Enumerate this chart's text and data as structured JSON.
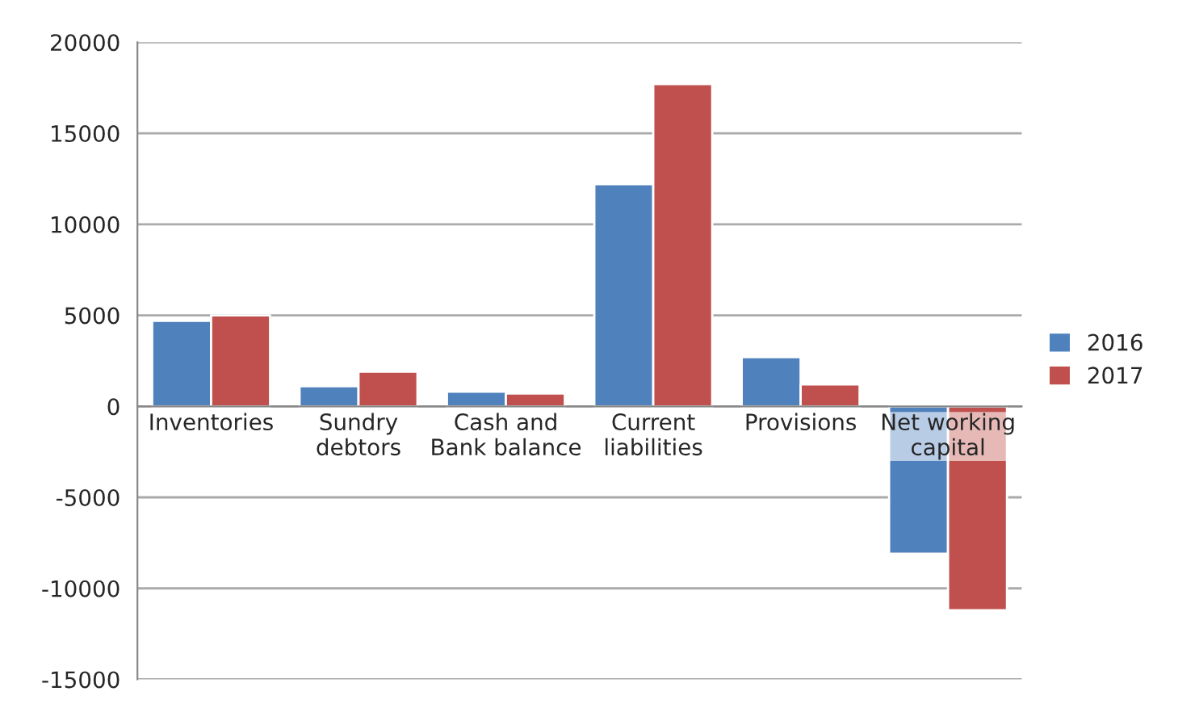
{
  "chart_data": {
    "type": "bar",
    "categories": [
      "Inventories",
      "Sundry\ndebtors",
      "Cash and\nBank balance",
      "Current\nliabilities",
      "Provisions",
      "Net working\ncapital"
    ],
    "series": [
      {
        "name": "2016",
        "color": "#4f81bd",
        "values": [
          4700,
          1100,
          800,
          12200,
          2700,
          -8100
        ]
      },
      {
        "name": "2017",
        "color": "#c0504d",
        "values": [
          5000,
          1900,
          700,
          17700,
          1200,
          -11200
        ]
      }
    ],
    "ylim": [
      -15000,
      20000
    ],
    "yticks": [
      -15000,
      -10000,
      -5000,
      0,
      5000,
      10000,
      15000,
      20000
    ],
    "grid": "y",
    "legend": "right"
  }
}
